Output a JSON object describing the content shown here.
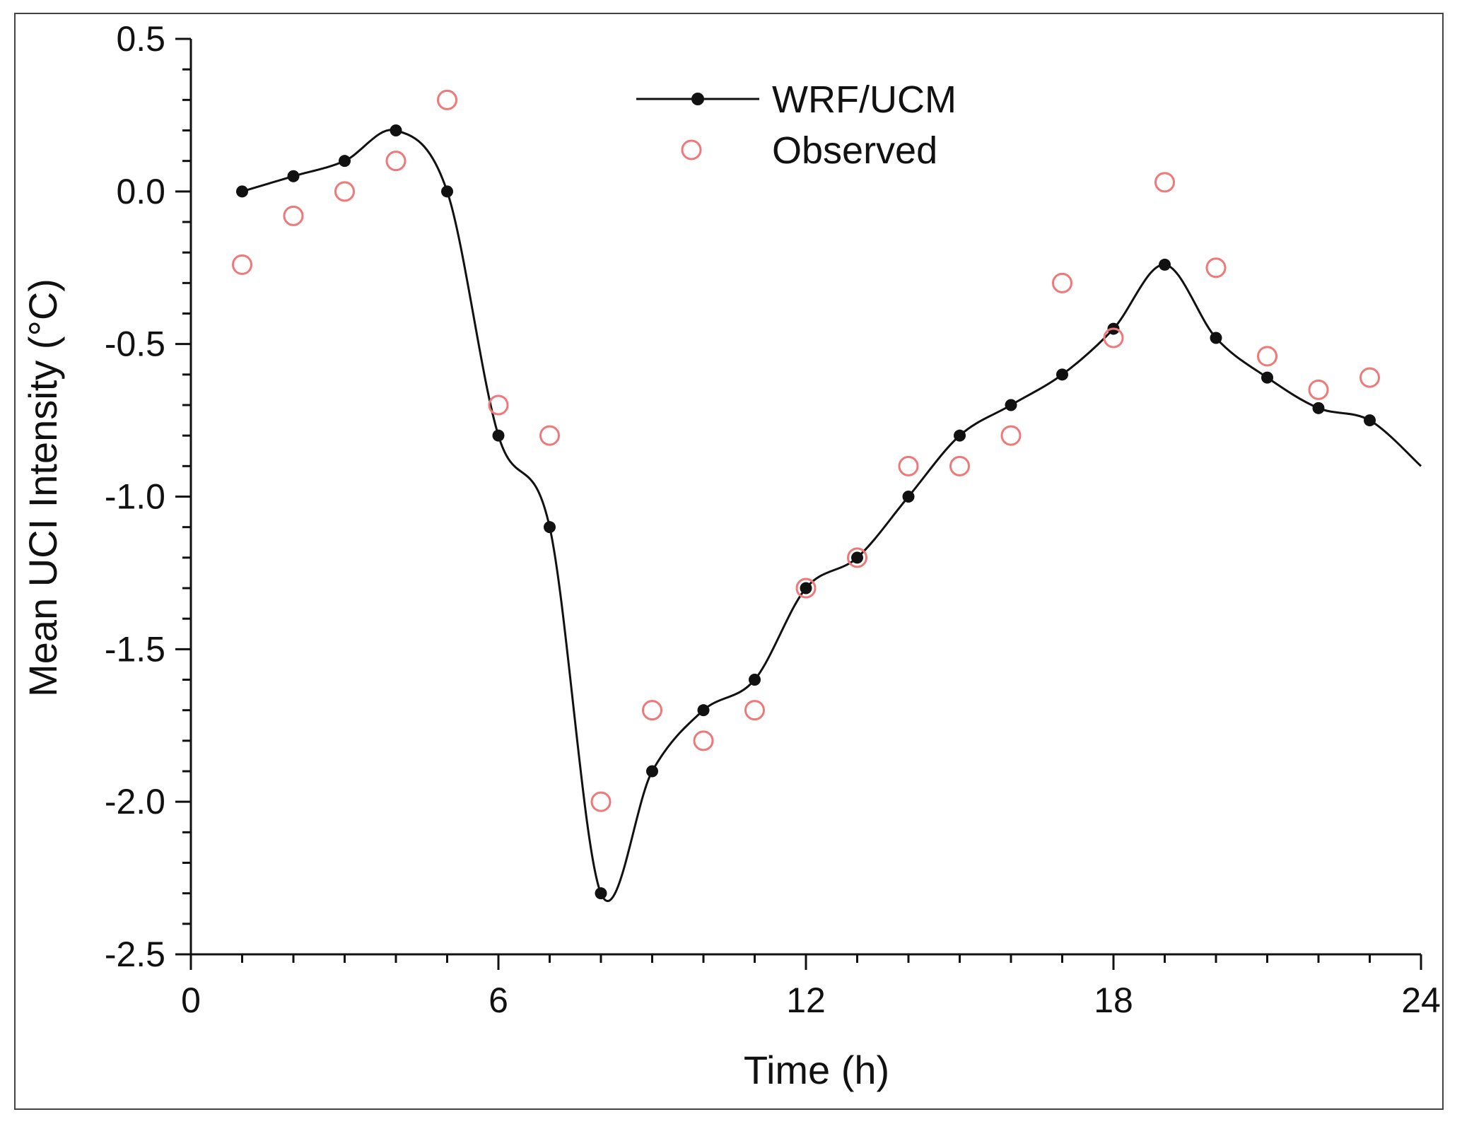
{
  "chart_data": {
    "type": "line",
    "title": "",
    "xlabel": "Time (h)",
    "ylabel": "Mean UCI Intensity (°C)",
    "xlim": [
      0,
      24
    ],
    "ylim": [
      -2.5,
      0.5
    ],
    "xticks": [
      0,
      6,
      12,
      18,
      24
    ],
    "xtick_labels": [
      "0",
      "6",
      "12",
      "18",
      "24"
    ],
    "yticks": [
      0.5,
      0.0,
      -0.5,
      -1.0,
      -1.5,
      -2.0,
      -2.5
    ],
    "ytick_labels": [
      "0.5",
      "0.0",
      "-0.5",
      "-1.0",
      "-1.5",
      "-2.0",
      "-2.5"
    ],
    "grid": false,
    "legend_position": "top-center",
    "series": [
      {
        "name": "WRF/UCM",
        "style": "line-with-filled-markers",
        "color": "#111111",
        "x": [
          1,
          2,
          3,
          4,
          5,
          6,
          7,
          8,
          9,
          10,
          11,
          12,
          13,
          14,
          15,
          16,
          17,
          18,
          19,
          20,
          21,
          22,
          23
        ],
        "values": [
          0.0,
          0.05,
          0.1,
          0.2,
          0.0,
          -0.8,
          -1.1,
          -2.3,
          -1.9,
          -1.7,
          -1.6,
          -1.3,
          -1.2,
          -1.0,
          -0.8,
          -0.7,
          -0.6,
          -0.45,
          -0.24,
          -0.48,
          -0.61,
          -0.71,
          -0.75
        ],
        "curve_end": {
          "x": 24,
          "value": -0.9
        }
      },
      {
        "name": "Observed",
        "style": "open-circle-markers",
        "color": "#f07878",
        "x": [
          1,
          2,
          3,
          4,
          5,
          6,
          7,
          8,
          9,
          10,
          11,
          12,
          13,
          14,
          15,
          16,
          17,
          18,
          19,
          20,
          21,
          22,
          23
        ],
        "values": [
          -0.24,
          -0.08,
          0.0,
          0.1,
          0.3,
          -0.7,
          -0.8,
          -2.0,
          -1.7,
          -1.8,
          -1.7,
          -1.3,
          -1.2,
          -0.9,
          -0.9,
          -0.8,
          -0.3,
          -0.48,
          0.03,
          -0.25,
          -0.54,
          -0.65,
          -0.61
        ]
      }
    ]
  }
}
